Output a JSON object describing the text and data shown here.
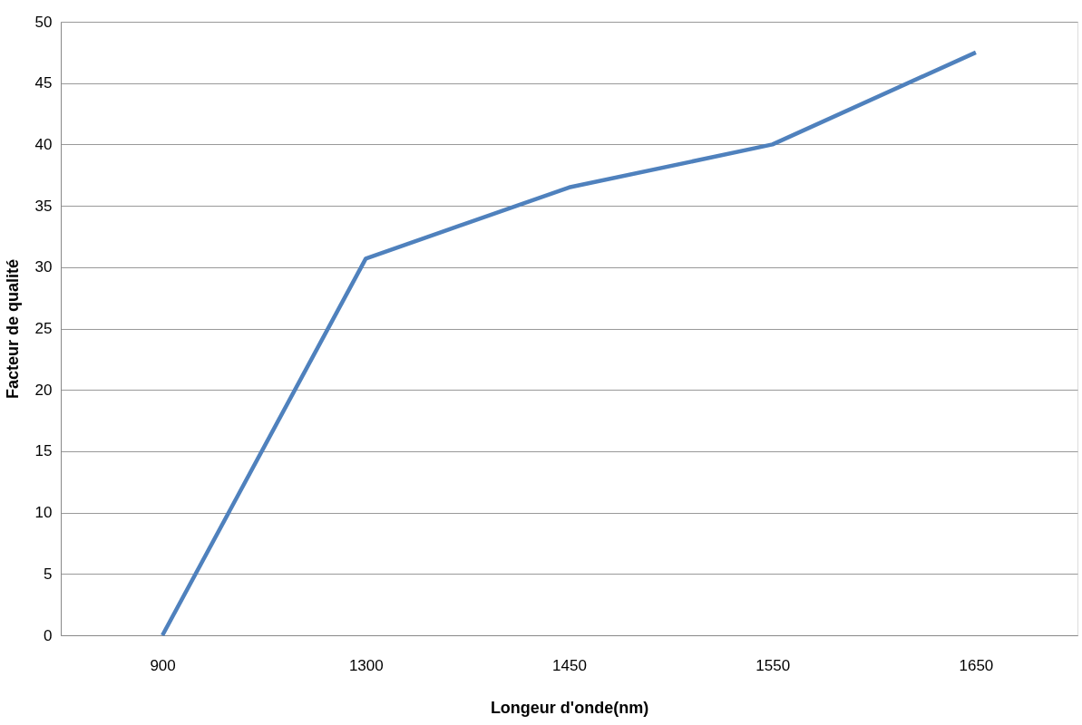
{
  "chart_data": {
    "type": "line",
    "xlabel": "Longeur d'onde(nm)",
    "ylabel": "Facteur de qualité",
    "categories": [
      "900",
      "1300",
      "1450",
      "1550",
      "1650"
    ],
    "series": [
      {
        "color": "#4f81bd",
        "values": [
          0,
          30.7,
          36.5,
          40,
          47.5
        ]
      }
    ],
    "ylim": [
      0,
      50
    ],
    "yticks": [
      0,
      5,
      10,
      15,
      20,
      25,
      30,
      35,
      40,
      45,
      50
    ],
    "grid": "y",
    "marker": "none",
    "line_style": "solid"
  }
}
